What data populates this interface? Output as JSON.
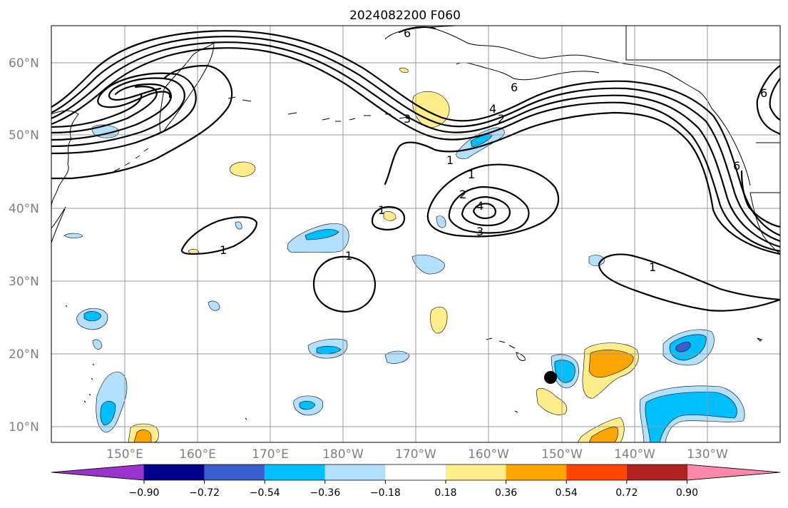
{
  "title": "2024082200 F060",
  "map": {
    "lat_labels": [
      "60°N",
      "50°N",
      "40°N",
      "30°N",
      "20°N",
      "10°N"
    ],
    "lon_labels": [
      "150°E",
      "160°E",
      "170°E",
      "180°W",
      "170°W",
      "160°W",
      "150°W",
      "140°W",
      "130°W"
    ],
    "contour_labels": [
      "1",
      "1",
      "1",
      "1",
      "1",
      "1",
      "2",
      "2",
      "3",
      "3",
      "4",
      "4",
      "6",
      "6",
      "6",
      "6"
    ],
    "marker": "storm-position"
  },
  "colorbar": {
    "ticks": [
      "−0.90",
      "−0.72",
      "−0.54",
      "−0.36",
      "−0.18",
      "0.18",
      "0.36",
      "0.54",
      "0.72",
      "0.90"
    ],
    "colors": [
      "#9933cc",
      "#00008b",
      "#3a5fcd",
      "#00bfff",
      "#b3e0ff",
      "#ffffff",
      "#ffec8b",
      "#ffa500",
      "#ff4500",
      "#b22222",
      "#ff88aa"
    ]
  }
}
